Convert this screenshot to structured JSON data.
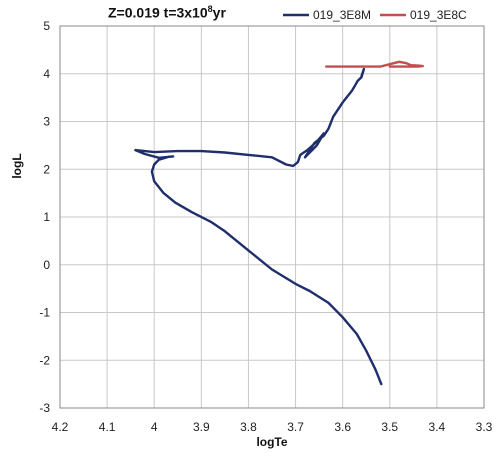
{
  "chart_data": {
    "type": "line",
    "title": {
      "main": "Z=0.019 t=3x10",
      "sup": "8",
      "suffix": "yr"
    },
    "xlabel": "logTe",
    "ylabel": "logL",
    "xlim": [
      4.2,
      3.3
    ],
    "ylim": [
      -3,
      5
    ],
    "x_inverted": true,
    "xticks": [
      4.2,
      4.1,
      4.0,
      3.9,
      3.8,
      3.7,
      3.6,
      3.5,
      3.4,
      3.3
    ],
    "xtick_labels": [
      "4.2",
      "4.1",
      "4",
      "3.9",
      "3.8",
      "3.7",
      "3.6",
      "3.5",
      "3.4",
      "3.3"
    ],
    "yticks": [
      -3,
      -2,
      -1,
      0,
      1,
      2,
      3,
      4,
      5
    ],
    "ytick_labels": [
      "-3",
      "-2",
      "-1",
      "0",
      "1",
      "2",
      "3",
      "4",
      "5"
    ],
    "grid": true,
    "legend_position": "top-right",
    "series": [
      {
        "name": "019_3E8M",
        "color": "#1f2f6b",
        "points": [
          [
            3.518,
            -2.5
          ],
          [
            3.53,
            -2.2
          ],
          [
            3.55,
            -1.8
          ],
          [
            3.57,
            -1.45
          ],
          [
            3.6,
            -1.1
          ],
          [
            3.63,
            -0.8
          ],
          [
            3.67,
            -0.55
          ],
          [
            3.7,
            -0.4
          ],
          [
            3.75,
            -0.1
          ],
          [
            3.8,
            0.3
          ],
          [
            3.85,
            0.7
          ],
          [
            3.88,
            0.9
          ],
          [
            3.92,
            1.1
          ],
          [
            3.955,
            1.3
          ],
          [
            3.98,
            1.5
          ],
          [
            4.0,
            1.75
          ],
          [
            4.005,
            1.95
          ],
          [
            4.0,
            2.1
          ],
          [
            3.99,
            2.2
          ],
          [
            3.97,
            2.26
          ],
          [
            3.96,
            2.27
          ],
          [
            3.99,
            2.24
          ],
          [
            4.02,
            2.32
          ],
          [
            4.04,
            2.4
          ],
          [
            4.0,
            2.36
          ],
          [
            3.95,
            2.38
          ],
          [
            3.9,
            2.38
          ],
          [
            3.85,
            2.35
          ],
          [
            3.8,
            2.3
          ],
          [
            3.75,
            2.25
          ],
          [
            3.72,
            2.1
          ],
          [
            3.705,
            2.07
          ],
          [
            3.695,
            2.15
          ],
          [
            3.69,
            2.3
          ],
          [
            3.675,
            2.4
          ],
          [
            3.655,
            2.58
          ],
          [
            3.64,
            2.75
          ],
          [
            3.655,
            2.5
          ],
          [
            3.68,
            2.25
          ],
          [
            3.66,
            2.55
          ],
          [
            3.64,
            2.7
          ],
          [
            3.63,
            2.85
          ],
          [
            3.62,
            3.1
          ],
          [
            3.6,
            3.4
          ],
          [
            3.58,
            3.65
          ],
          [
            3.568,
            3.85
          ],
          [
            3.56,
            3.93
          ],
          [
            3.555,
            4.1
          ],
          [
            3.56,
            3.95
          ]
        ]
      },
      {
        "name": "019_3E8C",
        "color": "#c0504d",
        "points": [
          [
            3.635,
            4.15
          ],
          [
            3.58,
            4.15
          ],
          [
            3.52,
            4.15
          ],
          [
            3.5,
            4.2
          ],
          [
            3.48,
            4.25
          ],
          [
            3.465,
            4.22
          ],
          [
            3.455,
            4.18
          ],
          [
            3.44,
            4.17
          ],
          [
            3.43,
            4.16
          ],
          [
            3.44,
            4.15
          ],
          [
            3.5,
            4.15
          ]
        ]
      }
    ]
  }
}
